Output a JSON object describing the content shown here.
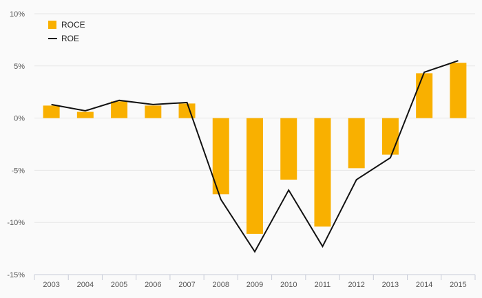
{
  "chart_data": {
    "type": "bar",
    "categories": [
      "2003",
      "2004",
      "2005",
      "2006",
      "2007",
      "2008",
      "2009",
      "2010",
      "2011",
      "2012",
      "2013",
      "2014",
      "2015"
    ],
    "series": [
      {
        "name": "ROCE",
        "type": "bar",
        "color": "#f9b000",
        "values": [
          1.2,
          0.6,
          1.6,
          1.2,
          1.4,
          -7.3,
          -11.1,
          -5.9,
          -10.4,
          -4.8,
          -3.5,
          4.3,
          5.3
        ]
      },
      {
        "name": "ROE",
        "type": "line",
        "color": "#111111",
        "values": [
          1.3,
          0.7,
          1.7,
          1.3,
          1.5,
          -7.8,
          -12.8,
          -6.9,
          -12.3,
          -5.9,
          -3.8,
          4.4,
          5.5
        ]
      }
    ],
    "ylim": [
      -15,
      10
    ],
    "yticks": [
      10,
      5,
      0,
      -5,
      -10,
      -15
    ],
    "ytick_labels": [
      "10%",
      "5%",
      "0%",
      "-5%",
      "-10%",
      "-15%"
    ],
    "title": "",
    "xlabel": "",
    "ylabel": "",
    "grid": true,
    "legend_position": "top-left"
  },
  "colors": {
    "background": "#fafafa",
    "grid": "#e6e6e6",
    "axis": "#c8ccd8",
    "tick_text": "#555555"
  }
}
